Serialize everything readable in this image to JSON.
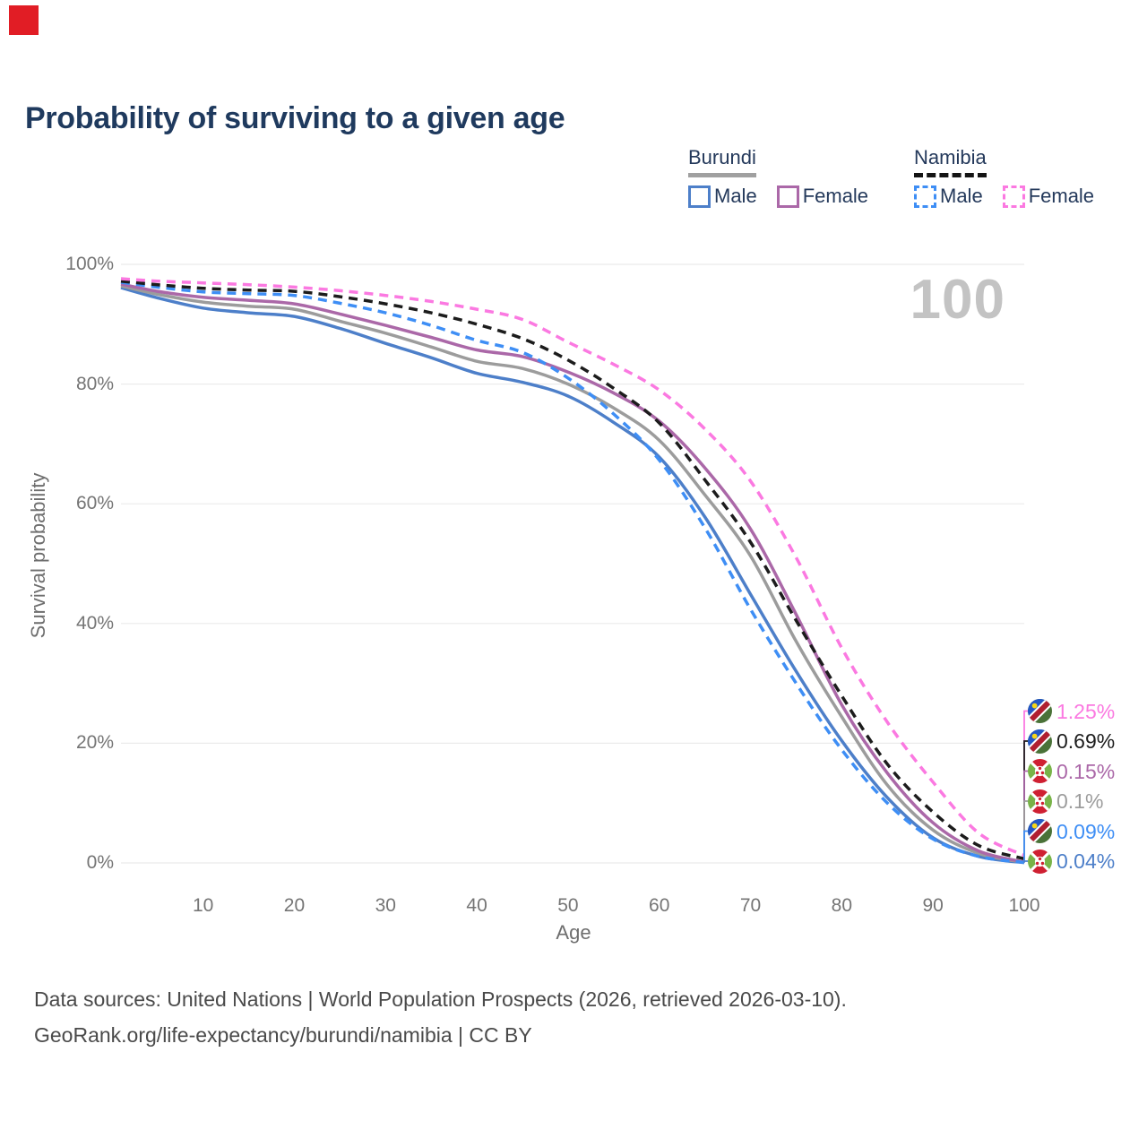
{
  "title": "Probability of surviving to a given age",
  "watermark_age": "100",
  "legend": {
    "groups": [
      {
        "name": "Burundi",
        "underline_style": "solid",
        "underline_color": "#a0a0a0",
        "items": [
          {
            "label": "Male",
            "color": "#4d7fc9",
            "dashed": false
          },
          {
            "label": "Female",
            "color": "#ab68a8",
            "dashed": false
          }
        ]
      },
      {
        "name": "Namibia",
        "underline_style": "dashed",
        "underline_color": "#141414",
        "items": [
          {
            "label": "Male",
            "color": "#3e8ef5",
            "dashed": true
          },
          {
            "label": "Female",
            "color": "#fb79e1",
            "dashed": true
          }
        ]
      }
    ]
  },
  "axes": {
    "y": {
      "label": "Survival probability",
      "ticks": [
        "100%",
        "80%",
        "60%",
        "40%",
        "20%",
        "0%"
      ],
      "min": 0,
      "max": 100,
      "grid": true
    },
    "x": {
      "label": "Age",
      "ticks": [
        "10",
        "20",
        "30",
        "40",
        "50",
        "60",
        "70",
        "80",
        "90",
        "100"
      ],
      "min": 1,
      "max": 100
    }
  },
  "chart_data": {
    "type": "line",
    "title": "Probability of surviving to a given age",
    "xlabel": "Age",
    "ylabel": "Survival probability",
    "ylim": [
      0,
      100
    ],
    "xlim": [
      1,
      100
    ],
    "legend_position": "top-right",
    "grid": "horizontal",
    "x": [
      1,
      5,
      10,
      15,
      20,
      25,
      30,
      35,
      40,
      45,
      50,
      55,
      60,
      65,
      70,
      75,
      80,
      85,
      90,
      95,
      100
    ],
    "series": [
      {
        "name": "Burundi Male",
        "country": "Burundi",
        "sex": "Male",
        "color": "#4d7fc9",
        "dashed": false,
        "values": [
          96.1,
          94.4,
          92.7,
          91.9,
          91.3,
          89.3,
          86.8,
          84.4,
          81.8,
          80.3,
          78.0,
          73.6,
          67.8,
          57.8,
          44.9,
          32.0,
          20.4,
          10.9,
          4.2,
          1.1,
          0.04
        ],
        "end_label": {
          "text": "0.04%",
          "row": 5,
          "flag": "burundi"
        }
      },
      {
        "name": "Burundi Total",
        "country": "Burundi",
        "sex": "Both",
        "color": "#9c9c9c",
        "dashed": false,
        "values": [
          96.4,
          95.0,
          93.7,
          93.0,
          92.5,
          90.5,
          88.5,
          86.2,
          83.8,
          82.6,
          80.0,
          76.0,
          70.6,
          61.5,
          51.3,
          37.0,
          24.4,
          13.0,
          5.5,
          1.6,
          0.1
        ],
        "end_label": {
          "text": "0.1%",
          "row": 3,
          "flag": "burundi"
        }
      },
      {
        "name": "Burundi Female",
        "country": "Burundi",
        "sex": "Female",
        "color": "#ab68a8",
        "dashed": false,
        "values": [
          96.7,
          95.5,
          94.5,
          94.0,
          93.4,
          91.7,
          89.8,
          87.8,
          85.7,
          84.6,
          82.0,
          78.5,
          73.8,
          66.0,
          55.8,
          41.5,
          26.4,
          15.0,
          6.7,
          2.0,
          0.15
        ],
        "end_label": {
          "text": "0.15%",
          "row": 2,
          "flag": "burundi"
        }
      },
      {
        "name": "Namibia Male",
        "country": "Namibia",
        "sex": "Male",
        "color": "#3e8ef5",
        "dashed": true,
        "values": [
          97.0,
          96.2,
          95.4,
          95.1,
          94.8,
          93.5,
          91.9,
          89.8,
          87.3,
          85.3,
          81.0,
          75.0,
          67.3,
          56.0,
          42.4,
          30.0,
          18.9,
          10.0,
          4.0,
          1.1,
          0.09
        ],
        "end_label": {
          "text": "0.09%",
          "row": 4,
          "flag": "namibia"
        }
      },
      {
        "name": "Namibia Total",
        "country": "Namibia",
        "sex": "Both",
        "color": "#1c1c1c",
        "dashed": true,
        "values": [
          97.2,
          96.6,
          96.0,
          95.7,
          95.5,
          94.6,
          93.4,
          91.9,
          90.0,
          87.6,
          84.0,
          79.3,
          73.5,
          64.0,
          53.6,
          40.5,
          27.9,
          16.5,
          8.5,
          2.9,
          0.69
        ],
        "end_label": {
          "text": "0.69%",
          "row": 1,
          "flag": "namibia"
        }
      },
      {
        "name": "Namibia Female",
        "country": "Namibia",
        "sex": "Female",
        "color": "#fb79e1",
        "dashed": true,
        "values": [
          97.6,
          97.2,
          96.9,
          96.6,
          96.2,
          95.6,
          94.8,
          93.8,
          92.5,
          90.8,
          87.0,
          83.3,
          79.0,
          72.5,
          63.8,
          51.0,
          35.9,
          23.5,
          13.5,
          5.0,
          1.25
        ],
        "end_label": {
          "text": "1.25%",
          "row": 0,
          "flag": "namibia"
        }
      }
    ]
  },
  "flags": {
    "namibia": {
      "blue": "#2457c5",
      "red": "#b01f30",
      "green": "#4a7238",
      "white": "#ffffff",
      "sun": "#f7d618"
    },
    "burundi": {
      "red": "#cf2032",
      "green": "#78b348",
      "white": "#ffffff"
    }
  },
  "footer": {
    "line1": "Data sources: United Nations | World Population Prospects (2026, retrieved 2026-03-10).",
    "line2": "GeoRank.org/life-expectancy/burundi/namibia | CC BY"
  }
}
